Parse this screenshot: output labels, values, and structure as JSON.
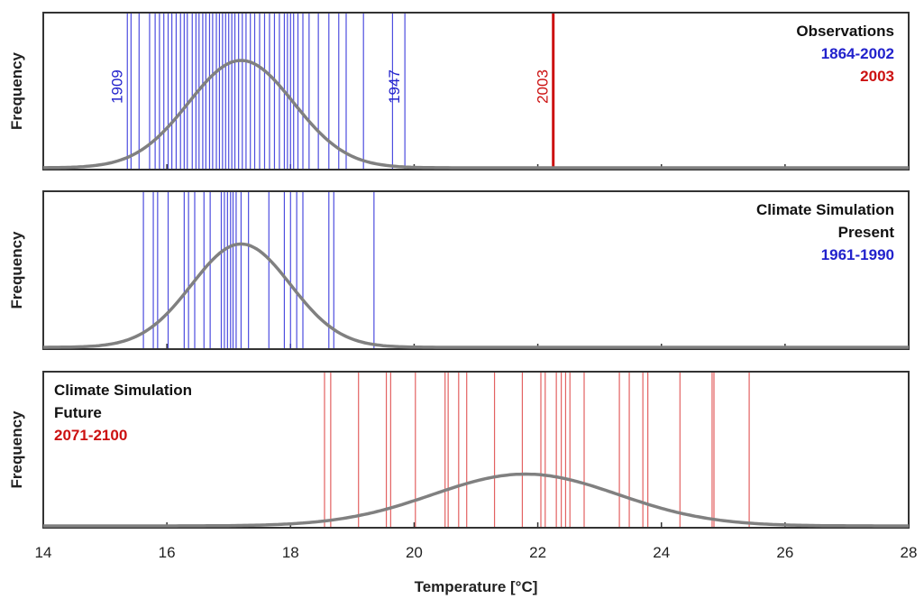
{
  "colors": {
    "blue": "#2222cc",
    "blue_line": "#3a3adc",
    "red": "#cc1111",
    "red_line": "#e05050",
    "curve": "#808080",
    "frame": "#333333",
    "text": "#111111"
  },
  "chart_data": [
    {
      "type": "histogram-strip",
      "panel": "observations",
      "ylabel": "Frequency",
      "xlim": [
        14,
        28
      ],
      "legend": [
        {
          "text": "Observations",
          "color": "#111111"
        },
        {
          "text": "1864-2002",
          "color": "#2222cc"
        },
        {
          "text": "2003",
          "color": "#cc1111"
        }
      ],
      "legend_position": "top-right",
      "series": [
        {
          "name": "1864-2002",
          "color": "#2222cc",
          "values": [
            15.36,
            15.42,
            15.55,
            15.72,
            15.81,
            15.88,
            15.95,
            16.02,
            16.08,
            16.15,
            16.22,
            16.28,
            16.33,
            16.41,
            16.47,
            16.52,
            16.58,
            16.63,
            16.69,
            16.74,
            16.8,
            16.85,
            16.9,
            16.95,
            17.0,
            17.05,
            17.1,
            17.16,
            17.22,
            17.28,
            17.35,
            17.42,
            17.5,
            17.58,
            17.66,
            17.74,
            17.82,
            17.9,
            17.95,
            18.0,
            18.05,
            18.12,
            18.2,
            18.3,
            18.45,
            18.62,
            18.78,
            18.9,
            19.18,
            19.65,
            19.85
          ]
        },
        {
          "name": "2003",
          "color": "#cc1111",
          "values": [
            22.25
          ]
        }
      ],
      "curve": {
        "mean": 17.2,
        "sd": 0.85,
        "peak": 0.7
      },
      "annotations": [
        {
          "text": "1909",
          "x": 15.36,
          "color": "#2222cc"
        },
        {
          "text": "1947",
          "x": 19.85,
          "color": "#2222cc"
        },
        {
          "text": "2003",
          "x": 22.25,
          "color": "#cc1111"
        }
      ]
    },
    {
      "type": "histogram-strip",
      "panel": "present",
      "ylabel": "Frequency",
      "xlim": [
        14,
        28
      ],
      "legend": [
        {
          "text": "Climate Simulation",
          "color": "#111111"
        },
        {
          "text": "Present",
          "color": "#111111"
        },
        {
          "text": "1961-1990",
          "color": "#2222cc"
        }
      ],
      "legend_position": "top-right",
      "series": [
        {
          "name": "1961-1990",
          "color": "#2222cc",
          "values": [
            15.62,
            15.78,
            15.85,
            16.02,
            16.28,
            16.35,
            16.45,
            16.6,
            16.7,
            16.88,
            16.93,
            16.98,
            17.03,
            17.07,
            17.12,
            17.2,
            17.32,
            17.65,
            17.9,
            18.0,
            18.1,
            18.2,
            18.62,
            18.7,
            19.35
          ]
        }
      ],
      "curve": {
        "mean": 17.2,
        "sd": 0.8,
        "peak": 0.67
      }
    },
    {
      "type": "histogram-strip",
      "panel": "future",
      "ylabel": "Frequency",
      "xlabel": "Temperature [°C]",
      "xlim": [
        14,
        28
      ],
      "xticks": [
        14,
        16,
        18,
        20,
        22,
        24,
        26,
        28
      ],
      "legend": [
        {
          "text": "Climate Simulation",
          "color": "#111111"
        },
        {
          "text": "Future",
          "color": "#111111"
        },
        {
          "text": "2071-2100",
          "color": "#cc1111"
        }
      ],
      "legend_position": "top-left",
      "series": [
        {
          "name": "2071-2100",
          "color": "#cc1111",
          "values": [
            18.55,
            18.65,
            19.1,
            19.55,
            19.62,
            20.02,
            20.5,
            20.55,
            20.72,
            20.85,
            21.3,
            21.75,
            22.05,
            22.12,
            22.3,
            22.38,
            22.45,
            22.52,
            22.75,
            23.32,
            23.48,
            23.7,
            23.78,
            24.3,
            24.82,
            24.85,
            25.42
          ]
        }
      ],
      "curve": {
        "mean": 21.8,
        "sd": 1.5,
        "peak": 0.34
      }
    }
  ]
}
